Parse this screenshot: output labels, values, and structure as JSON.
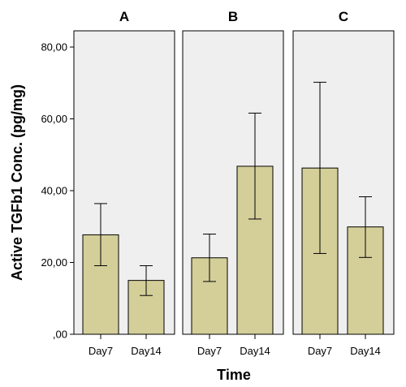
{
  "chart_data": {
    "type": "bar",
    "xlabel": "Time",
    "ylabel": "Active TGFb1 Conc. (pg/mg)",
    "ylim": [
      0,
      80
    ],
    "yticks": [
      0,
      20,
      40,
      60,
      80
    ],
    "ytick_labels": [
      ",00",
      "20,00",
      "40,00",
      "60,00",
      "80,00"
    ],
    "categories": [
      "Day7",
      "Day14"
    ],
    "colors": {
      "bar": "#d4cf99",
      "panel_background": "#efefef"
    },
    "panels": [
      {
        "title": "A",
        "bars": [
          {
            "category": "Day7",
            "value": 27.7,
            "err_low": 19.1,
            "err_high": 36.4
          },
          {
            "category": "Day14",
            "value": 15.0,
            "err_low": 10.8,
            "err_high": 19.1
          }
        ]
      },
      {
        "title": "B",
        "bars": [
          {
            "category": "Day7",
            "value": 21.3,
            "err_low": 14.7,
            "err_high": 27.9
          },
          {
            "category": "Day14",
            "value": 46.8,
            "err_low": 32.1,
            "err_high": 61.6
          }
        ]
      },
      {
        "title": "C",
        "bars": [
          {
            "category": "Day7",
            "value": 46.3,
            "err_low": 22.5,
            "err_high": 70.2
          },
          {
            "category": "Day14",
            "value": 29.9,
            "err_low": 21.4,
            "err_high": 38.3
          }
        ]
      }
    ]
  }
}
